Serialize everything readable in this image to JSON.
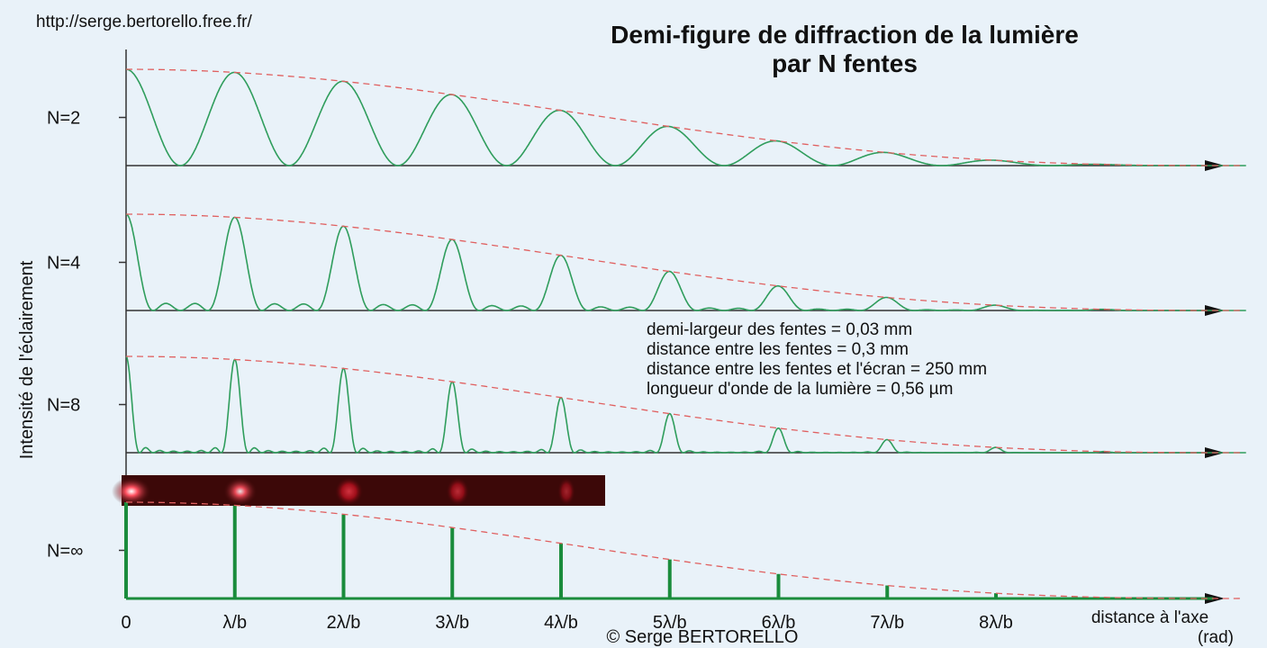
{
  "header": {
    "url": "http://serge.bertorello.free.fr/",
    "title_line_1": "Demi-figure de diffraction de la lumière",
    "title_line_2": "par N fentes"
  },
  "y_axis_label": "Intensité de l'éclairement",
  "rows": [
    {
      "label": "N=2"
    },
    {
      "label": "N=4"
    },
    {
      "label": "N=8"
    },
    {
      "label": "N=∞"
    }
  ],
  "parameters": [
    "demi-largeur des fentes = 0,03 mm",
    "distance entre les fentes = 0,3 mm",
    "distance entre les fentes et l'écran = 250 mm",
    "longueur d'onde de la lumière = 0,56 µm"
  ],
  "x_tick_labels": [
    "0",
    "λ/b",
    "2λ/b",
    "3λ/b",
    "4λ/b",
    "5λ/b",
    "6λ/b",
    "7λ/b",
    "8λ/b"
  ],
  "x_axis_label": "distance à l'axe",
  "x_axis_unit": "(rad)",
  "footer": "© Serge BERTORELLO"
}
